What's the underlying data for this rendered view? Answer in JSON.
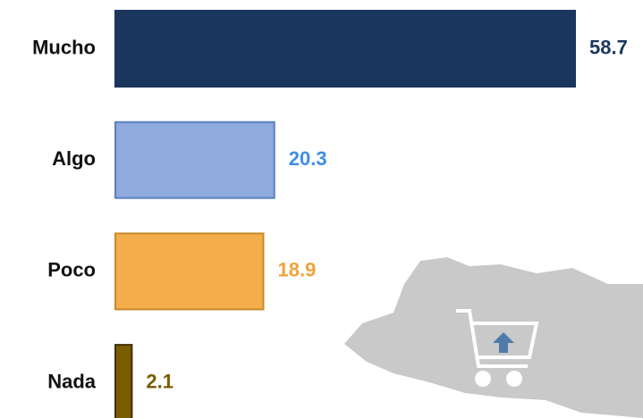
{
  "chart_data": {
    "type": "barh",
    "categories": [
      "Mucho",
      "Algo",
      "Poco",
      "Nada"
    ],
    "values": [
      58.7,
      20.3,
      18.9,
      2.1
    ],
    "colors": [
      "#1b365d",
      "#8faadc",
      "#f4ad4b",
      "#7a5c00"
    ],
    "edge_colors": [
      "#1b365d",
      "#5a7fc0",
      "#c48a2a",
      "#3f3000"
    ],
    "label_colors": [
      "#1b365d",
      "#3f8fe6",
      "#f2a23a",
      "#7a5c00"
    ]
  }
}
